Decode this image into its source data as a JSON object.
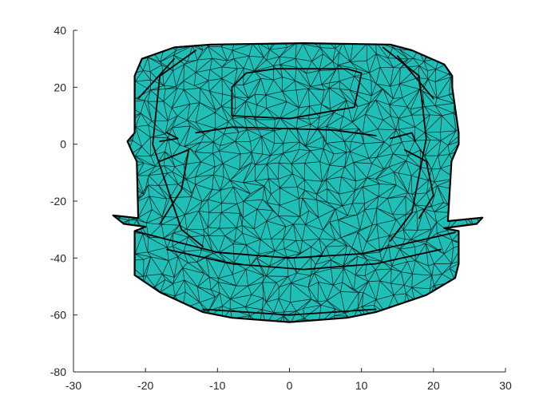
{
  "chart_data": {
    "type": "mesh",
    "title": "",
    "xlabel": "",
    "ylabel": "",
    "xlim": [
      -30,
      30
    ],
    "ylim": [
      -80,
      40
    ],
    "x_ticks": [
      -30,
      -20,
      -10,
      0,
      10,
      20,
      30
    ],
    "y_ticks": [
      40,
      20,
      0,
      -20,
      -40,
      -60,
      -80
    ],
    "x_tick_labels": [
      "-30",
      "-20",
      "-10",
      "0",
      "10",
      "20",
      "30"
    ],
    "y_tick_labels": [
      "40",
      "20",
      "0",
      "-20",
      "-40",
      "-60",
      "-80"
    ],
    "grid": false,
    "face_color": "#1fbfb8",
    "edge_color": "#000000",
    "surface": {
      "outline": [
        [
          -11,
          35
        ],
        [
          -16,
          34
        ],
        [
          -20.5,
          30
        ],
        [
          -21.5,
          24
        ],
        [
          -21.5,
          4
        ],
        [
          -22.5,
          1
        ],
        [
          -21.8,
          -3
        ],
        [
          -21.2,
          -6
        ],
        [
          -21,
          -26
        ],
        [
          -24.5,
          -25
        ],
        [
          -23,
          -28
        ],
        [
          -20,
          -29
        ],
        [
          -21.5,
          -30.5
        ],
        [
          -21.5,
          -46
        ],
        [
          -18,
          -52
        ],
        [
          -12,
          -59
        ],
        [
          -8,
          -61
        ],
        [
          0,
          -62.5
        ],
        [
          8,
          -61
        ],
        [
          12,
          -59
        ],
        [
          19,
          -53
        ],
        [
          23,
          -47
        ],
        [
          23.5,
          -42
        ],
        [
          23.5,
          -30.5
        ],
        [
          21.5,
          -29.5
        ],
        [
          26,
          -28
        ],
        [
          26.8,
          -25.8
        ],
        [
          22,
          -27
        ],
        [
          22.5,
          -6
        ],
        [
          23.5,
          0
        ],
        [
          23.5,
          4
        ],
        [
          22.6,
          20
        ],
        [
          22.6,
          24
        ],
        [
          21.5,
          28
        ],
        [
          17,
          33
        ],
        [
          14,
          35
        ],
        [
          2,
          35.5
        ]
      ],
      "feature_lines": [
        [
          [
            -21.5,
            -30.5
          ],
          [
            -10,
            -38
          ],
          [
            0,
            -40
          ],
          [
            10,
            -38.5
          ],
          [
            23,
            -31
          ]
        ],
        [
          [
            -17,
            -37
          ],
          [
            -8,
            -42
          ],
          [
            2,
            -44
          ],
          [
            12,
            -42
          ],
          [
            21,
            -37
          ]
        ],
        [
          [
            -13,
            33
          ],
          [
            -18,
            24
          ],
          [
            -19,
            0
          ],
          [
            -15,
            -30
          ],
          [
            -12,
            -36
          ]
        ],
        [
          [
            13,
            34
          ],
          [
            18,
            24
          ],
          [
            19,
            2
          ],
          [
            17,
            -24
          ],
          [
            14,
            -34
          ]
        ],
        [
          [
            -6,
            25
          ],
          [
            -2,
            26.5
          ],
          [
            8,
            26.5
          ],
          [
            10,
            25
          ],
          [
            9,
            13
          ],
          [
            0,
            9
          ],
          [
            -8,
            10
          ],
          [
            -8,
            20
          ],
          [
            -6,
            25
          ]
        ],
        [
          [
            -13,
            4
          ],
          [
            -8,
            6
          ],
          [
            6,
            5
          ],
          [
            12,
            3
          ]
        ],
        [
          [
            -18,
            -6
          ],
          [
            -14,
            -2
          ],
          [
            -15,
            -16
          ],
          [
            -18,
            -28
          ]
        ],
        [
          [
            16,
            -2
          ],
          [
            19,
            -6
          ],
          [
            20,
            -18
          ],
          [
            18,
            -26
          ]
        ],
        [
          [
            -18,
            1
          ],
          [
            -15.5,
            2
          ],
          [
            -17,
            4
          ]
        ],
        [
          [
            14,
            2
          ],
          [
            17,
            4
          ],
          [
            17.5,
            1
          ]
        ],
        [
          [
            -12,
            -58
          ],
          [
            0,
            -60
          ],
          [
            12,
            -58
          ]
        ],
        [
          [
            -21,
            16
          ],
          [
            -16,
            30
          ]
        ],
        [
          [
            20,
            16
          ],
          [
            15,
            31
          ]
        ]
      ]
    }
  }
}
